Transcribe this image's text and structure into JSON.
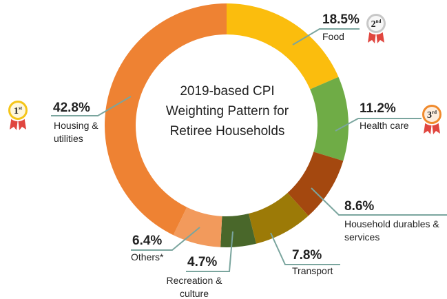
{
  "chart_data": {
    "type": "donut",
    "title": "2019-based CPI Weighting Pattern for Retiree Households",
    "categories": [
      "Food",
      "Health care",
      "Household durables & services",
      "Transport",
      "Recreation & culture",
      "Others*",
      "Housing & utilities"
    ],
    "values": [
      18.5,
      11.2,
      8.6,
      7.8,
      4.7,
      6.4,
      42.8
    ],
    "value_labels": [
      "18.5%",
      "11.2%",
      "8.6%",
      "7.8%",
      "4.7%",
      "6.4%",
      "42.8%"
    ],
    "colors": [
      "#fbbd0d",
      "#6fac46",
      "#a4480f",
      "#9c7a07",
      "#49672a",
      "#f29a5c",
      "#ee8233"
    ],
    "badges": [
      {
        "category": 6,
        "rank": "1",
        "suffix": "st",
        "color": "#f5c518"
      },
      {
        "category": 0,
        "rank": "2",
        "suffix": "nd",
        "color": "#c8c8c8"
      },
      {
        "category": 1,
        "rank": "3",
        "suffix": "rd",
        "color": "#f08a2c"
      }
    ]
  }
}
